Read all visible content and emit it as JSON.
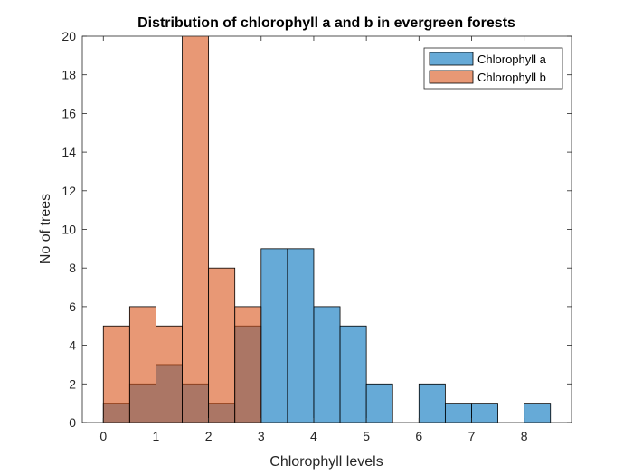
{
  "chart_data": {
    "type": "bar",
    "title": "Distribution of chlorophyll a and b in evergreen forests",
    "xlabel": "Chlorophyll levels",
    "ylabel": "No of trees",
    "xlim": [
      -0.4,
      8.9
    ],
    "ylim": [
      0,
      20
    ],
    "xticks": [
      0,
      1,
      2,
      3,
      4,
      5,
      6,
      7,
      8
    ],
    "yticks": [
      0,
      2,
      4,
      6,
      8,
      10,
      12,
      14,
      16,
      18,
      20
    ],
    "bin_width": 0.5,
    "legend_position": "top-right",
    "grid": false,
    "series": [
      {
        "name": "Chlorophyll a",
        "color": "#0072BD",
        "opacity": 0.6,
        "bins": [
          {
            "x0": 0.0,
            "count": 1
          },
          {
            "x0": 0.5,
            "count": 2
          },
          {
            "x0": 1.0,
            "count": 3
          },
          {
            "x0": 1.5,
            "count": 2
          },
          {
            "x0": 2.0,
            "count": 1
          },
          {
            "x0": 2.5,
            "count": 5
          },
          {
            "x0": 3.0,
            "count": 9
          },
          {
            "x0": 3.5,
            "count": 9
          },
          {
            "x0": 4.0,
            "count": 6
          },
          {
            "x0": 4.5,
            "count": 5
          },
          {
            "x0": 5.0,
            "count": 2
          },
          {
            "x0": 6.0,
            "count": 2
          },
          {
            "x0": 6.5,
            "count": 1
          },
          {
            "x0": 7.0,
            "count": 1
          },
          {
            "x0": 8.0,
            "count": 1
          }
        ]
      },
      {
        "name": "Chlorophyll b",
        "color": "#D95319",
        "opacity": 0.6,
        "bins": [
          {
            "x0": 0.0,
            "count": 5
          },
          {
            "x0": 0.5,
            "count": 6
          },
          {
            "x0": 1.0,
            "count": 5
          },
          {
            "x0": 1.5,
            "count": 21
          },
          {
            "x0": 2.0,
            "count": 8
          },
          {
            "x0": 2.5,
            "count": 6
          }
        ]
      }
    ]
  }
}
